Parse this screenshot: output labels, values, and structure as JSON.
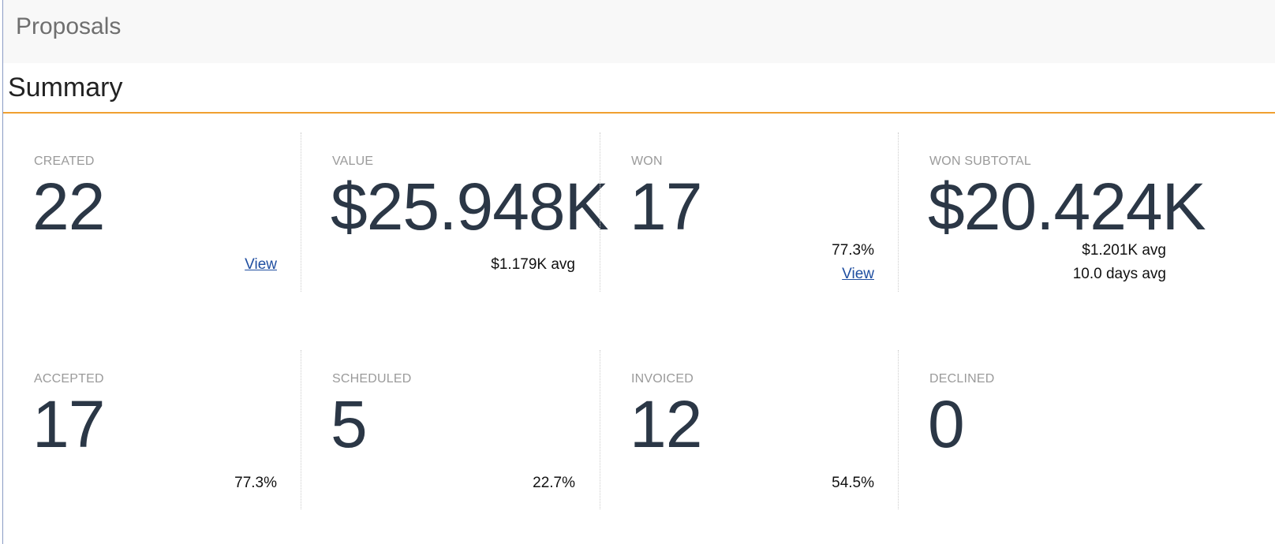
{
  "header": {
    "title": "Proposals"
  },
  "section": {
    "title": "Summary"
  },
  "colors": {
    "accent": "#f0a030",
    "number": "#2b3746",
    "link": "#1f4ea0"
  },
  "cards": [
    {
      "label": "CREATED",
      "value": "22",
      "link": "View"
    },
    {
      "label": "VALUE",
      "value": "$25.948K",
      "avg": "$1.179K avg"
    },
    {
      "label": "WON",
      "value": "17",
      "percent": "77.3%",
      "link": "View"
    },
    {
      "label": "WON SUBTOTAL",
      "value": "$20.424K",
      "avg": "$1.201K avg",
      "days": "10.0 days avg"
    },
    {
      "label": "ACCEPTED",
      "value": "17",
      "percent": "77.3%"
    },
    {
      "label": "SCHEDULED",
      "value": "5",
      "percent": "22.7%"
    },
    {
      "label": "INVOICED",
      "value": "12",
      "percent": "54.5%"
    },
    {
      "label": "DECLINED",
      "value": "0"
    }
  ]
}
